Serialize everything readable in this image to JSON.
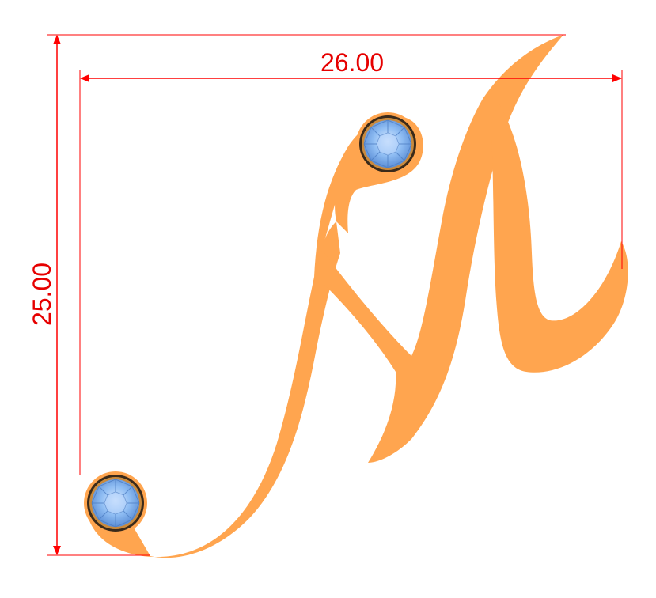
{
  "dimensions": {
    "width_label": "26.00",
    "height_label": "25.00",
    "line_color": "#ff0000",
    "text_color": "#e60000"
  },
  "pendant": {
    "letter": "M",
    "metal_color": "#ffa54f",
    "gem_color": "#7fb2f0",
    "gem_icon": "round-gemstone-icon",
    "gem_count": 2
  }
}
